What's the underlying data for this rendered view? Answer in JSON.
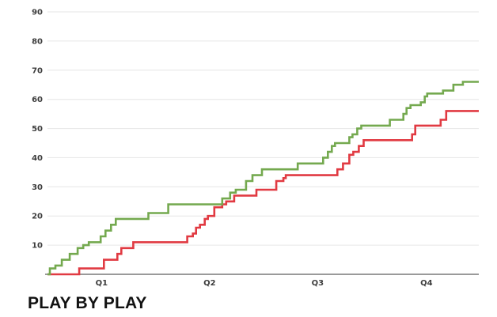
{
  "title": {
    "text": "PLAY BY PLAY"
  },
  "colors": {
    "background": "#FFFFFF",
    "grid": "#E6E6E6",
    "axis": "#9A9A9A",
    "tick_text": "#3C3C3C",
    "title_text": "#121212",
    "green_series": "#74A94F",
    "red_series": "#E13A42"
  },
  "chart_data": {
    "type": "line",
    "subtype": "step-after",
    "title": "PLAY BY PLAY",
    "grid": true,
    "legend": false,
    "x_axis": {
      "tick_labels": [
        "Q1",
        "Q2",
        "Q3",
        "Q4"
      ],
      "tick_positions": [
        68,
        204,
        340,
        477
      ],
      "range": [
        0,
        543
      ]
    },
    "y_axis": {
      "ticks": [
        10,
        20,
        30,
        40,
        50,
        60,
        70,
        80,
        90
      ],
      "range": [
        0,
        90
      ]
    },
    "series": [
      {
        "name": "green",
        "color_key": "green_series",
        "final_score": 66,
        "points": [
          [
            0,
            0
          ],
          [
            3,
            2
          ],
          [
            10,
            3
          ],
          [
            18,
            5
          ],
          [
            28,
            7
          ],
          [
            38,
            9
          ],
          [
            45,
            10
          ],
          [
            52,
            11
          ],
          [
            67,
            13
          ],
          [
            73,
            15
          ],
          [
            80,
            17
          ],
          [
            86,
            19
          ],
          [
            127,
            21
          ],
          [
            152,
            24
          ],
          [
            220,
            26
          ],
          [
            230,
            28
          ],
          [
            237,
            29
          ],
          [
            250,
            32
          ],
          [
            258,
            34
          ],
          [
            270,
            36
          ],
          [
            315,
            38
          ],
          [
            347,
            40
          ],
          [
            353,
            42
          ],
          [
            358,
            44
          ],
          [
            362,
            45
          ],
          [
            380,
            47
          ],
          [
            384,
            48
          ],
          [
            390,
            50
          ],
          [
            395,
            51
          ],
          [
            431,
            53
          ],
          [
            448,
            55
          ],
          [
            452,
            57
          ],
          [
            457,
            58
          ],
          [
            470,
            59
          ],
          [
            475,
            61
          ],
          [
            478,
            62
          ],
          [
            498,
            63
          ],
          [
            511,
            65
          ],
          [
            523,
            66
          ],
          [
            543,
            66
          ]
        ]
      },
      {
        "name": "red",
        "color_key": "red_series",
        "final_score": 56,
        "points": [
          [
            0,
            0
          ],
          [
            40,
            2
          ],
          [
            71,
            5
          ],
          [
            88,
            7
          ],
          [
            93,
            9
          ],
          [
            108,
            11
          ],
          [
            176,
            13
          ],
          [
            183,
            14
          ],
          [
            187,
            16
          ],
          [
            192,
            17
          ],
          [
            198,
            19
          ],
          [
            202,
            20
          ],
          [
            210,
            23
          ],
          [
            220,
            24
          ],
          [
            225,
            25
          ],
          [
            235,
            27
          ],
          [
            263,
            29
          ],
          [
            288,
            32
          ],
          [
            297,
            33
          ],
          [
            300,
            34
          ],
          [
            365,
            36
          ],
          [
            372,
            38
          ],
          [
            380,
            41
          ],
          [
            385,
            42
          ],
          [
            392,
            44
          ],
          [
            398,
            46
          ],
          [
            459,
            48
          ],
          [
            463,
            51
          ],
          [
            495,
            53
          ],
          [
            502,
            56
          ],
          [
            543,
            56
          ]
        ]
      }
    ]
  }
}
